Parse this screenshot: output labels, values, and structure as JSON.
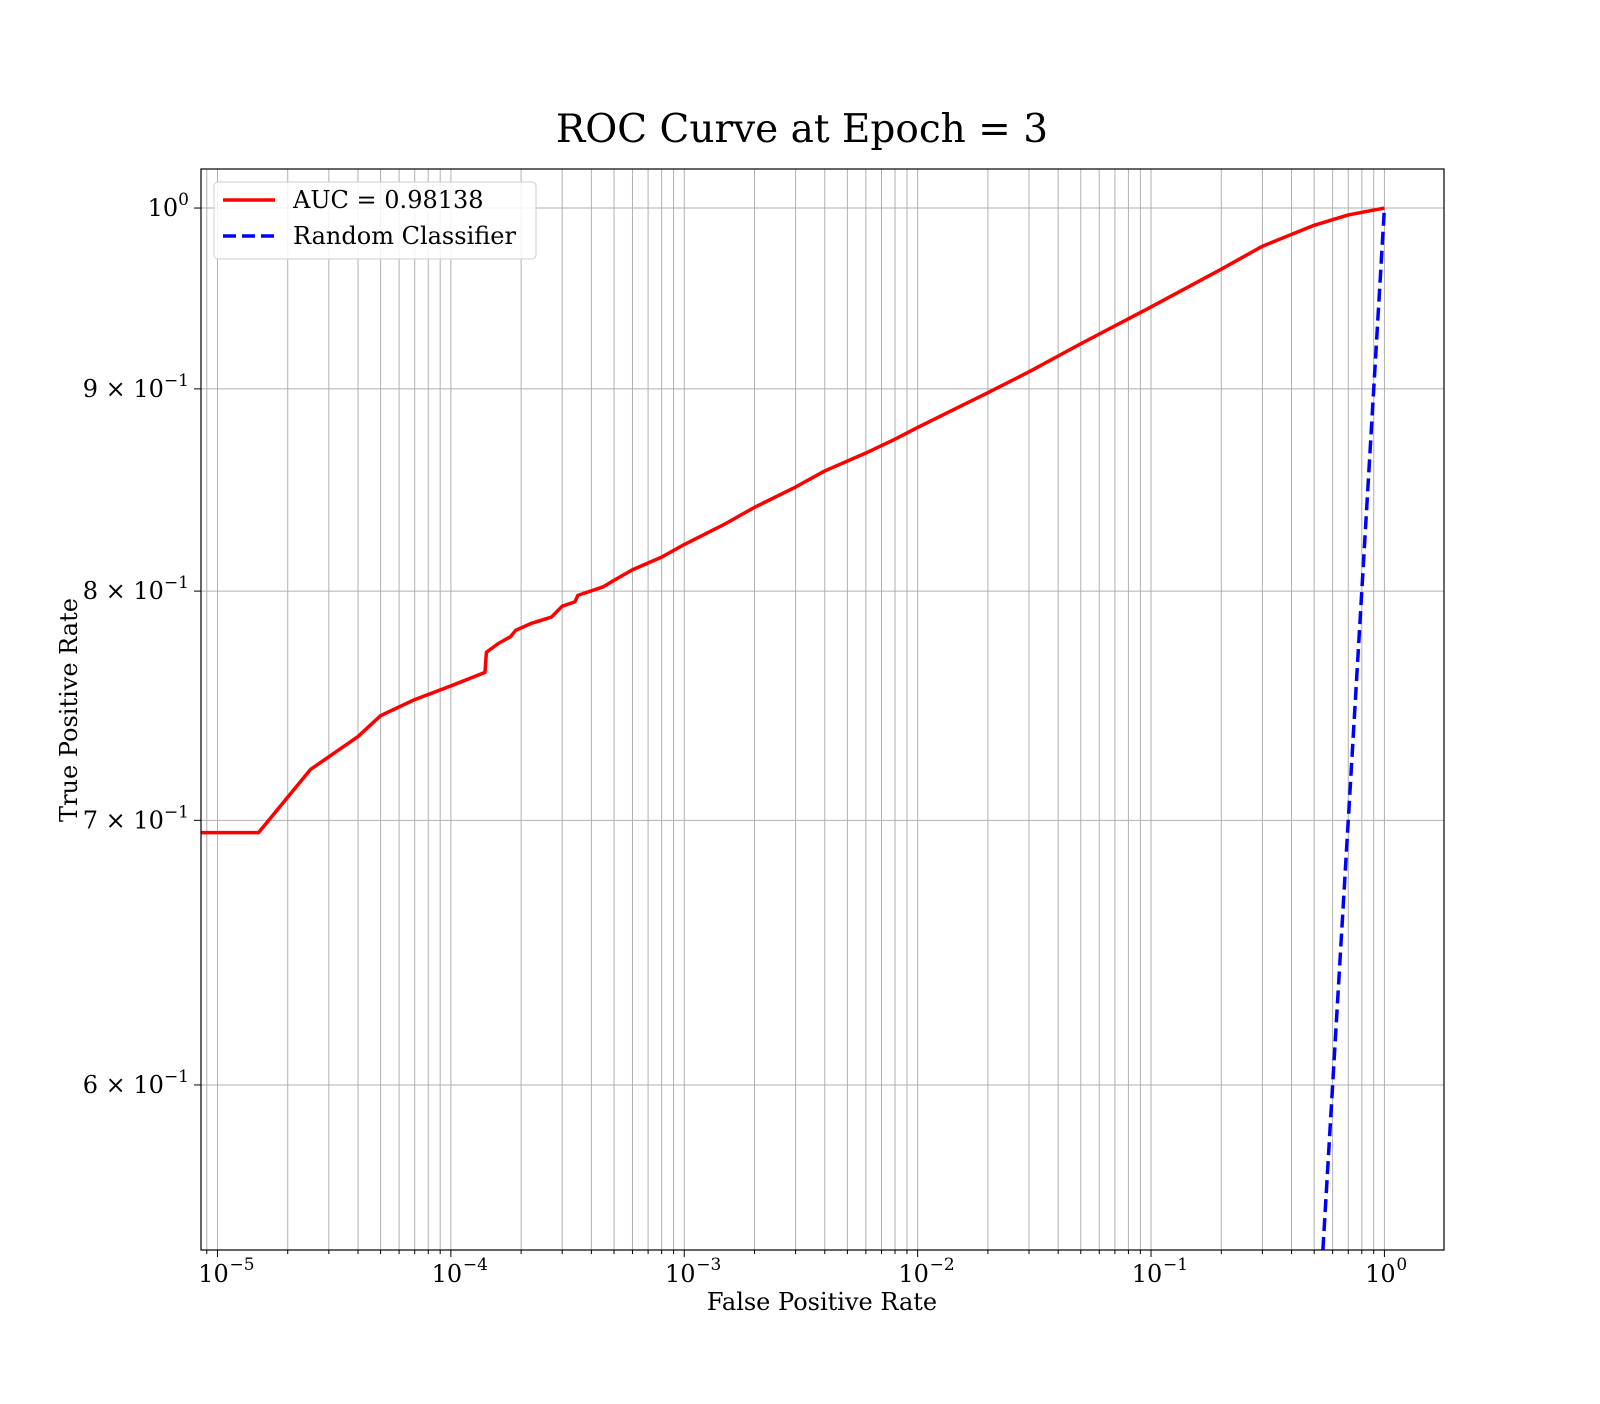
{
  "chart_data": {
    "type": "line",
    "title": "ROC Curve at Epoch = 3",
    "xlabel": "False Positive Rate",
    "ylabel": "True Positive Rate",
    "xscale": "log",
    "yscale": "log",
    "xlim": [
      8.5e-06,
      1.8
    ],
    "ylim": [
      0.545,
      1.023
    ],
    "grid": "both",
    "legend_placement": "top-left",
    "x_tick_labels": [
      {
        "base": "10",
        "exp": "−5",
        "value": 1e-05
      },
      {
        "base": "10",
        "exp": "−4",
        "value": 0.0001
      },
      {
        "base": "10",
        "exp": "−3",
        "value": 0.001
      },
      {
        "base": "10",
        "exp": "−2",
        "value": 0.01
      },
      {
        "base": "10",
        "exp": "−1",
        "value": 0.1
      },
      {
        "base": "10",
        "exp": "0",
        "value": 1
      }
    ],
    "y_tick_labels": [
      {
        "base": "10",
        "exp": "0",
        "mult": "",
        "value": 1.0
      },
      {
        "base": "10",
        "exp": "−1",
        "mult": "9 × ",
        "value": 0.9
      },
      {
        "base": "10",
        "exp": "−1",
        "mult": "8 × ",
        "value": 0.8
      },
      {
        "base": "10",
        "exp": "−1",
        "mult": "7 × ",
        "value": 0.7
      },
      {
        "base": "10",
        "exp": "−1",
        "mult": "6 × ",
        "value": 0.6
      }
    ],
    "series": [
      {
        "name": "AUC = 0.98138",
        "color": "#ff0000",
        "style": "solid",
        "x": [
          8.5e-06,
          1.5e-05,
          2.5e-05,
          4e-05,
          5e-05,
          7e-05,
          0.0001,
          0.00014,
          0.000142,
          0.00016,
          0.00018,
          0.00019,
          0.00022,
          0.00027,
          0.0003,
          0.00034,
          0.00035,
          0.00045,
          0.0005,
          0.0006,
          0.0008,
          0.001,
          0.0015,
          0.002,
          0.003,
          0.004,
          0.006,
          0.008,
          0.01,
          0.02,
          0.03,
          0.05,
          0.1,
          0.2,
          0.3,
          0.5,
          0.7,
          1.0
        ],
        "y": [
          0.695,
          0.695,
          0.721,
          0.735,
          0.744,
          0.751,
          0.757,
          0.763,
          0.772,
          0.776,
          0.779,
          0.782,
          0.785,
          0.788,
          0.793,
          0.795,
          0.798,
          0.802,
          0.805,
          0.81,
          0.816,
          0.822,
          0.832,
          0.84,
          0.85,
          0.858,
          0.867,
          0.874,
          0.88,
          0.898,
          0.909,
          0.924,
          0.944,
          0.965,
          0.978,
          0.99,
          0.996,
          1.0
        ]
      },
      {
        "name": "Random Classifier",
        "color": "#0000ff",
        "style": "dashed",
        "x": [
          0.545,
          0.6,
          0.7,
          0.8,
          0.9,
          1.0
        ],
        "y": [
          0.545,
          0.6,
          0.7,
          0.8,
          0.9,
          1.0
        ]
      }
    ]
  }
}
